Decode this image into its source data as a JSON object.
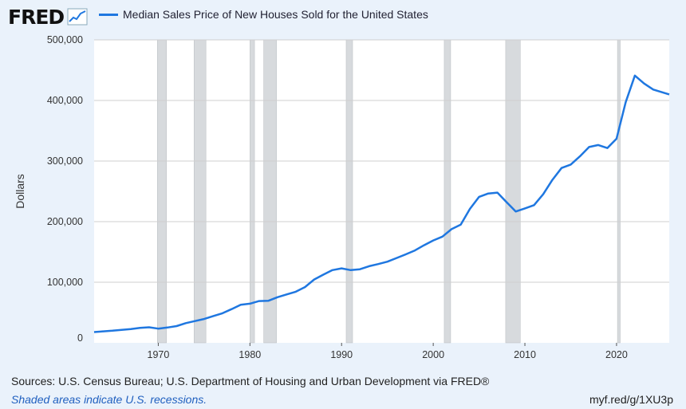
{
  "header": {
    "logo_text": "FRED",
    "logo_icon": "line-chart-icon"
  },
  "colors": {
    "series": "#1f77e0",
    "recession": "#d7dadd",
    "background": "#eaf2fb",
    "plot": "#ffffff",
    "grid": "#cfcfcf"
  },
  "chart_data": {
    "type": "line",
    "series": [
      {
        "name": "Median Sales Price of New Houses Sold for the United States",
        "x": [
          1963,
          1964,
          1965,
          1966,
          1967,
          1968,
          1969,
          1970,
          1971,
          1972,
          1973,
          1974,
          1975,
          1976,
          1977,
          1978,
          1979,
          1980,
          1981,
          1982,
          1983,
          1984,
          1985,
          1986,
          1987,
          1988,
          1989,
          1990,
          1991,
          1992,
          1993,
          1994,
          1995,
          1996,
          1997,
          1998,
          1999,
          2000,
          2001,
          2002,
          2003,
          2004,
          2005,
          2006,
          2007,
          2008,
          2009,
          2010,
          2011,
          2012,
          2013,
          2014,
          2015,
          2016,
          2017,
          2018,
          2019,
          2020,
          2021,
          2022,
          2023,
          2024,
          2025.75
        ],
        "values": [
          17800,
          18900,
          20000,
          21400,
          22700,
          24700,
          25600,
          23400,
          25200,
          27600,
          32500,
          35900,
          39300,
          44200,
          48800,
          55700,
          62900,
          64600,
          68900,
          69300,
          75300,
          79900,
          84300,
          92000,
          104500,
          112500,
          120000,
          122900,
          120000,
          121500,
          126500,
          130000,
          133900,
          140000,
          146000,
          152500,
          161000,
          169000,
          175200,
          187600,
          195000,
          221000,
          240900,
          246500,
          247900,
          232100,
          216700,
          221800,
          227200,
          245200,
          268900,
          288500,
          294200,
          307800,
          323100,
          326400,
          321500,
          336900,
          397100,
          441000,
          428000,
          418000,
          410000
        ]
      }
    ],
    "ylabel": "Dollars",
    "xlim": [
      1963,
      2025.75
    ],
    "ylim": [
      0,
      500000
    ],
    "x_ticks": [
      1970,
      1980,
      1990,
      2000,
      2010,
      2020
    ],
    "y_ticks": [
      0,
      100000,
      200000,
      300000,
      400000,
      500000
    ],
    "y_tick_labels": [
      "0",
      "100,000",
      "200,000",
      "300,000",
      "400,000",
      "500,000"
    ],
    "recessions": [
      [
        1969.9,
        1970.9
      ],
      [
        1973.9,
        1975.2
      ],
      [
        1980.0,
        1980.5
      ],
      [
        1981.5,
        1982.9
      ],
      [
        1990.5,
        1991.2
      ],
      [
        2001.2,
        2001.9
      ],
      [
        2007.9,
        2009.5
      ],
      [
        2020.1,
        2020.4
      ]
    ],
    "grid": "horizontal"
  },
  "footer": {
    "sources": "Sources: U.S. Census Bureau; U.S. Department of Housing and Urban Development via FRED®",
    "recession_note": "Shaded areas indicate U.S. recessions.",
    "short_url": "myf.red/g/1XU3p"
  }
}
